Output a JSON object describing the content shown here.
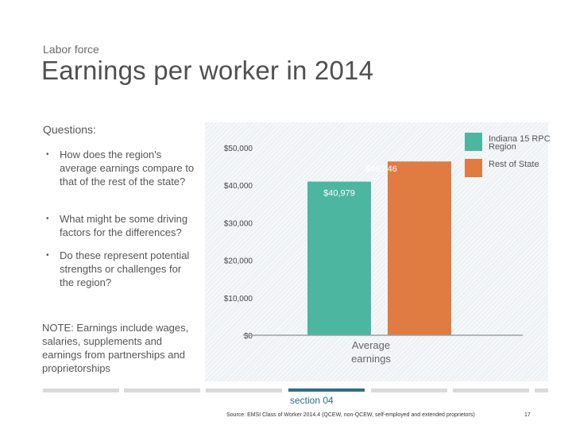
{
  "slide": {
    "kicker": "Labor force",
    "title": "Earnings per worker in 2014",
    "questions_heading": "Questions:",
    "questions": [
      "How does the region's average earnings compare to that of the rest of the state?",
      "What might be some driving factors for the differences?",
      "Do these represent potential strengths or challenges for the region?"
    ],
    "bullet_symbol": "•",
    "note": "NOTE: Earnings include wages, salaries, supplements and earnings from partnerships and proprietorships",
    "section_label": "section 04",
    "source": "Source: EMSI Class of Worker 2014.4 (QCEW, non-QCEW, self-employed and extended proprietors)",
    "page_number": "17"
  },
  "colors": {
    "region": "#4db6a0",
    "rest_of_state": "#e07b42",
    "accent": "#2f6e86"
  },
  "chart_data": {
    "type": "bar",
    "title": "",
    "categories": [
      "Average earnings"
    ],
    "series": [
      {
        "name": "Indiana 15 RPC Region",
        "values": [
          40979
        ],
        "color": "#4db6a0"
      },
      {
        "name": "Rest of State",
        "values": [
          46346
        ],
        "color": "#e07b42"
      }
    ],
    "data_labels": [
      "$40,979",
      "$46,346"
    ],
    "ylim": [
      0,
      50000
    ],
    "y_ticks": [
      0,
      10000,
      20000,
      30000,
      40000,
      50000
    ],
    "y_tick_labels": [
      "$0",
      "$10,000",
      "$20,000",
      "$30,000",
      "$40,000",
      "$50,000"
    ],
    "xlabel": "",
    "ylabel": "",
    "legend": "top-right",
    "grid": false
  }
}
